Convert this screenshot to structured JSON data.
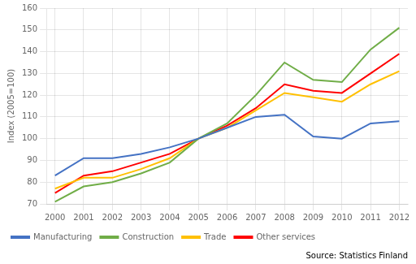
{
  "chart_data": {
    "type": "line",
    "ylabel": "Index (2005=100)",
    "annotations": [
      "Source: Statistics Finland"
    ],
    "x": [
      2000,
      2001,
      2002,
      2003,
      2004,
      2005,
      2006,
      2007,
      2008,
      2009,
      2010,
      2011,
      2012
    ],
    "series": [
      {
        "name": "Manufacturing",
        "color": "#4472C4",
        "values": [
          83,
          91,
          91,
          93,
          96,
          100,
          105,
          110,
          111,
          101,
          100,
          107,
          108
        ]
      },
      {
        "name": "Construction",
        "color": "#70AD47",
        "values": [
          71,
          78,
          80,
          84,
          89,
          100,
          107,
          120,
          135,
          127,
          126,
          141,
          151
        ]
      },
      {
        "name": "Trade",
        "color": "#FFC000",
        "values": [
          77,
          82,
          82,
          86,
          91,
          100,
          105,
          113,
          121,
          119,
          117,
          125,
          131
        ]
      },
      {
        "name": "Other services",
        "color": "#FF0000",
        "values": [
          75,
          83,
          85,
          89,
          93,
          100,
          106,
          114,
          125,
          122,
          121,
          130,
          139
        ]
      }
    ],
    "xlim": [
      1999.7,
      2012.3
    ],
    "xticks": [
      2000,
      2001,
      2002,
      2003,
      2004,
      2005,
      2006,
      2007,
      2008,
      2009,
      2010,
      2011,
      2012
    ],
    "ylim": [
      70,
      160
    ],
    "yticks": [
      70,
      80,
      90,
      100,
      110,
      120,
      130,
      140,
      150,
      160
    ],
    "grid": true,
    "legend": "bottom"
  }
}
